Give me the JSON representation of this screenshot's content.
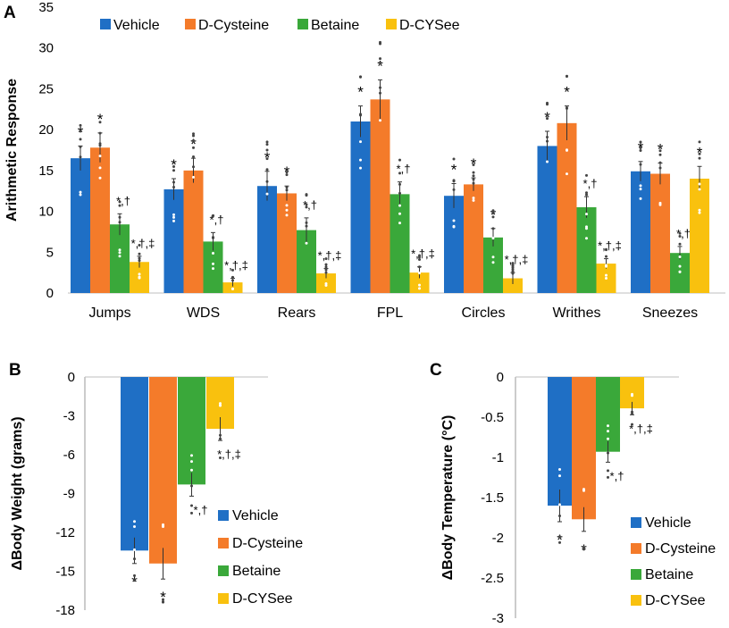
{
  "colors": {
    "Vehicle": "#1f6fc5",
    "D-Cysteine": "#f47b2a",
    "Betaine": "#3aa83a",
    "D-CYSee": "#f9c10e"
  },
  "chart_data": [
    {
      "panel": "A",
      "type": "bar",
      "ylabel": "Arithmetic Response",
      "xlabel": "",
      "ylim": [
        0,
        35
      ],
      "yticks": [
        "0",
        "5",
        "10",
        "15",
        "20",
        "25",
        "30",
        "35"
      ],
      "legend_position": "top",
      "categories": [
        "Jumps",
        "WDS",
        "Rears",
        "FPL",
        "Circles",
        "Writhes",
        "Sneezes"
      ],
      "series": [
        {
          "name": "Vehicle",
          "values": [
            16.5,
            12.7,
            13.1,
            21.0,
            11.9,
            18.0,
            14.9
          ],
          "err": [
            1.5,
            1.3,
            1.8,
            1.9,
            1.5,
            1.8,
            1.2
          ]
        },
        {
          "name": "D-Cysteine",
          "values": [
            17.8,
            15.0,
            12.2,
            23.7,
            13.3,
            20.8,
            14.6
          ],
          "err": [
            1.8,
            1.5,
            0.9,
            2.4,
            0.8,
            2.1,
            1.3
          ]
        },
        {
          "name": "Betaine",
          "values": [
            8.4,
            6.3,
            7.7,
            12.1,
            6.8,
            10.5,
            4.9
          ],
          "err": [
            1.3,
            1.1,
            1.5,
            1.5,
            1.1,
            1.3,
            0.8
          ]
        },
        {
          "name": "D-CYSee",
          "values": [
            3.8,
            1.3,
            2.4,
            2.5,
            1.8,
            3.6,
            14.0
          ],
          "err": [
            0.7,
            0.5,
            0.6,
            0.7,
            0.7,
            0.6,
            1.5
          ]
        }
      ],
      "annotations": [
        [
          "*",
          "*",
          "*,†",
          "*,†,‡"
        ],
        [
          "*",
          "*",
          "*,†",
          "*,†,‡"
        ],
        [
          "*",
          "*",
          "*,†",
          "*,†,‡"
        ],
        [
          "*",
          "*",
          "*,†",
          "*,†,‡"
        ],
        [
          "*",
          "*",
          "*",
          "*,†,‡"
        ],
        [
          "*",
          "*",
          "*,†",
          "*,†,‡"
        ],
        [
          "*",
          "*",
          "*,†",
          "*"
        ]
      ]
    },
    {
      "panel": "B",
      "type": "bar",
      "ylabel": "ΔBody Weight (grams)",
      "xlabel": "",
      "ylim": [
        -18,
        0
      ],
      "yticks": [
        "0",
        "-3",
        "-6",
        "-9",
        "-12",
        "-15",
        "-18"
      ],
      "legend_position": "bottom-right",
      "categories": [
        "Vehicle",
        "D-Cysteine",
        "Betaine",
        "D-CYSee"
      ],
      "values": [
        -13.4,
        -14.4,
        -8.3,
        -4.0
      ],
      "err": [
        1.0,
        1.2,
        0.9,
        0.9
      ],
      "annotations": [
        "*",
        "*",
        "*,†",
        "*,†,‡"
      ]
    },
    {
      "panel": "C",
      "type": "bar",
      "ylabel": "ΔBody Temperature  (°C)",
      "xlabel": "",
      "ylim": [
        -3,
        0
      ],
      "yticks": [
        "0",
        "-0.5",
        "-1",
        "-1.5",
        "-2",
        "-2.5",
        "-3"
      ],
      "legend_position": "bottom-right",
      "categories": [
        "Vehicle",
        "D-Cysteine",
        "Betaine",
        "D-CYSee"
      ],
      "values": [
        -1.6,
        -1.77,
        -0.93,
        -0.39
      ],
      "err": [
        0.2,
        0.15,
        0.13,
        0.08
      ],
      "annotations": [
        "*",
        "*",
        "*,†",
        "*,†,‡"
      ]
    }
  ],
  "panel_labels": {
    "a": "A",
    "b": "B",
    "c": "C"
  },
  "legend_labels": [
    "Vehicle",
    "D-Cysteine",
    "Betaine",
    "D-CYSee"
  ]
}
